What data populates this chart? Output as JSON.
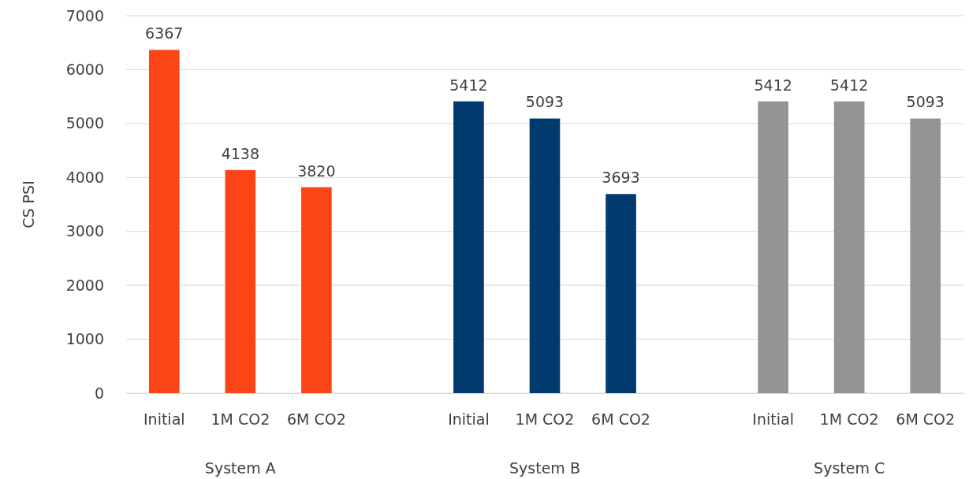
{
  "chart_data": {
    "type": "bar",
    "ylabel": "CS PSI",
    "categories": [
      "Initial",
      "1M CO2",
      "6M CO2",
      null,
      "Initial",
      "1M CO2",
      "6M CO2",
      null,
      "Initial",
      "1M CO2",
      "6M CO2"
    ],
    "series": [
      {
        "color": "#fc4516",
        "values": [
          6367,
          4138,
          3820,
          null,
          null,
          null,
          null,
          null,
          null,
          null,
          null
        ]
      },
      {
        "color": "#003a6e",
        "values": [
          null,
          null,
          null,
          null,
          5412,
          5093,
          3693,
          null,
          null,
          null,
          null
        ]
      },
      {
        "color": "#949494",
        "values": [
          null,
          null,
          null,
          null,
          null,
          null,
          null,
          null,
          5412,
          5412,
          5093
        ]
      }
    ],
    "annotations": [
      "System A",
      "System B",
      "System C"
    ],
    "ylim": [
      0,
      7000
    ],
    "yticks": [
      0,
      1000,
      2000,
      3000,
      4000,
      5000,
      6000,
      7000
    ],
    "grid": "y",
    "data_labels": true
  }
}
